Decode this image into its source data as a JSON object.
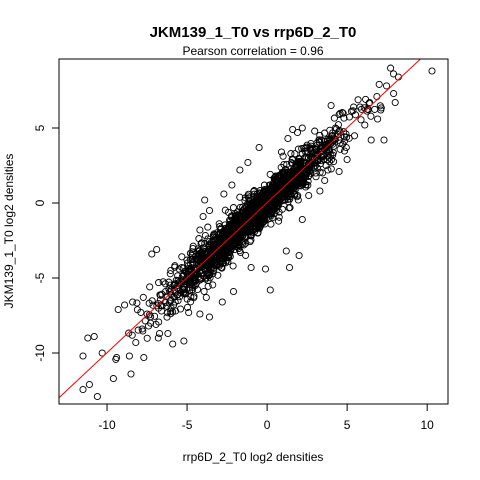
{
  "chart_data": {
    "type": "scatter",
    "title": "JKM139_1_T0 vs rrp6D_2_T0",
    "subtitle": "Pearson correlation =  0.96",
    "xlabel": "rrp6D_2_T0 log2 densities",
    "ylabel": "JKM139_1_T0 log2 densities",
    "xlim": [
      -13.0,
      11.3
    ],
    "ylim": [
      -13.4,
      9.6
    ],
    "x_ticks": [
      -10,
      -5,
      0,
      5,
      10
    ],
    "y_ticks": [
      -10,
      -5,
      0,
      5
    ],
    "x_tick_labels": [
      "-10",
      "-5",
      "0",
      "5",
      "10"
    ],
    "y_tick_labels": [
      "-10",
      "-5",
      "0",
      "5"
    ],
    "grid": false,
    "point_style": "open circle",
    "point_color": "#000000",
    "fit_line": {
      "intercept": 0.02,
      "slope": 1.0,
      "color": "#ff0000"
    },
    "bulk_point_count": 1800,
    "outlier_points": [
      [
        10.3,
        8.8
      ],
      [
        8.2,
        8.4
      ],
      [
        7.9,
        7.3
      ],
      [
        8.0,
        6.7
      ],
      [
        6.4,
        6.7
      ],
      [
        5.8,
        6.4
      ],
      [
        -11.1,
        -12.1
      ],
      [
        -10.6,
        -12.9
      ],
      [
        -9.6,
        -11.7
      ],
      [
        -11.5,
        -10.2
      ],
      [
        -11.2,
        -9.0
      ],
      [
        -10.8,
        -8.9
      ],
      [
        -10.3,
        -10.0
      ],
      [
        -9.4,
        -10.3
      ],
      [
        -8.6,
        -10.2
      ],
      [
        -7.7,
        -10.3
      ],
      [
        -8.5,
        -11.4
      ],
      [
        -8.2,
        -9.3
      ],
      [
        -7.4,
        -8.2
      ],
      [
        -6.6,
        -7.2
      ],
      [
        -6.0,
        -7.0
      ],
      [
        -5.9,
        -9.4
      ],
      [
        -5.2,
        -9.2
      ],
      [
        -4.2,
        -7.4
      ],
      [
        -3.8,
        -6.3
      ],
      [
        -3.6,
        -7.6
      ],
      [
        -2.8,
        -6.6
      ],
      [
        -4.9,
        -7.3
      ],
      [
        -2.1,
        -5.9
      ],
      [
        -1.0,
        -4.3
      ],
      [
        0.2,
        -5.8
      ],
      [
        -0.1,
        -4.4
      ],
      [
        1.4,
        -4.3
      ],
      [
        1.2,
        -3.2
      ],
      [
        2.0,
        -3.5
      ],
      [
        -7.2,
        -3.4
      ],
      [
        -6.9,
        -3.1
      ],
      [
        -4.2,
        -1.8
      ],
      [
        -4.0,
        -0.9
      ],
      [
        -3.9,
        0.2
      ],
      [
        -3.6,
        -0.5
      ],
      [
        -2.7,
        0.6
      ],
      [
        -2.2,
        1.2
      ],
      [
        -1.2,
        2.7
      ],
      [
        -1.7,
        2.2
      ],
      [
        -0.5,
        3.7
      ],
      [
        0.9,
        3.4
      ],
      [
        1.3,
        4.3
      ],
      [
        1.6,
        4.9
      ],
      [
        1.9,
        4.7
      ],
      [
        2.2,
        5.0
      ],
      [
        4.0,
        6.5
      ],
      [
        5.4,
        6.4
      ],
      [
        4.5,
        5.9
      ],
      [
        6.5,
        4.2
      ],
      [
        7.3,
        4.2
      ],
      [
        5.0,
        2.9
      ],
      [
        4.5,
        2.1
      ],
      [
        3.6,
        1.5
      ],
      [
        3.3,
        0.8
      ],
      [
        2.6,
        0.5
      ],
      [
        2.2,
        -1.1
      ],
      [
        3.8,
        2.2
      ],
      [
        1.7,
        0.6
      ],
      [
        -9.3,
        -7.1
      ],
      [
        -8.9,
        -6.8
      ],
      [
        -8.4,
        -6.6
      ],
      [
        -7.8,
        -8.4
      ],
      [
        -6.8,
        -9.0
      ],
      [
        -6.2,
        -8.7
      ],
      [
        -5.3,
        -4.9
      ],
      [
        -4.7,
        -3.5
      ],
      [
        -5.5,
        -4.4
      ],
      [
        -2.4,
        -3.6
      ],
      [
        -3.0,
        -2.7
      ],
      [
        2.8,
        3.3
      ],
      [
        3.4,
        4.2
      ],
      [
        4.1,
        3.2
      ],
      [
        6.1,
        5.2
      ],
      [
        6.9,
        5.6
      ],
      [
        7.1,
        6.2
      ]
    ]
  }
}
